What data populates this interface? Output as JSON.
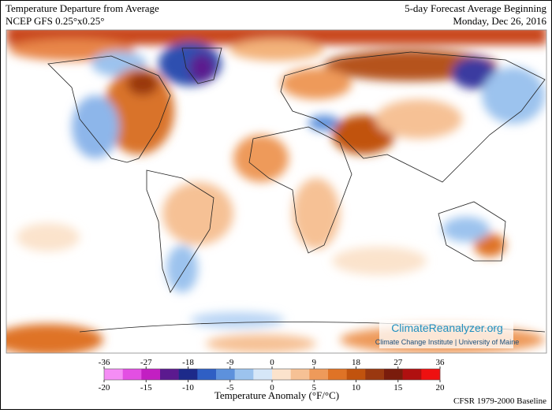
{
  "header": {
    "title_left": "Temperature Departure from Average",
    "subtitle_left": "NCEP GFS 0.25°x0.25°",
    "title_right": "5-day Forecast Average Beginning",
    "subtitle_right": "Monday, Dec 26, 2016"
  },
  "watermark": {
    "site": "ClimateReanalyzer.org",
    "org": "Climate Change Institute | University of Maine"
  },
  "colorbar": {
    "f_ticks": [
      -36,
      -27,
      -18,
      -9,
      0,
      9,
      18,
      27,
      36
    ],
    "c_ticks": [
      -20,
      -15,
      -10,
      -5,
      0,
      5,
      10,
      15,
      20
    ],
    "colors": [
      "#f58df5",
      "#e34fe3",
      "#c21fc2",
      "#5b1a8f",
      "#1d2a8a",
      "#2f5fc4",
      "#5d91dc",
      "#9cc3ee",
      "#d6e7f8",
      "#fbe3cc",
      "#f6c195",
      "#ee9a5a",
      "#df7326",
      "#c1530e",
      "#9a3810",
      "#7a1c0c",
      "#b01010",
      "#ee1010"
    ],
    "label": "Temperature Anomaly (°F/°C)"
  },
  "footer": {
    "baseline": "CFSR 1979-2000 Baseline"
  }
}
